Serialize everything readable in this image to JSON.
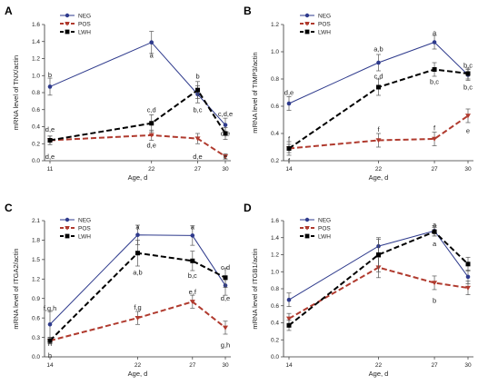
{
  "colors": {
    "NEG": "#2e3a8c",
    "POS": "#b03a2e",
    "LWH": "#000000"
  },
  "chart_data": [
    {
      "type": "line",
      "panel": "A",
      "xlabel": "Age, d",
      "ylabel": "mRNA level of TNX/actin",
      "x": [
        11,
        22,
        27,
        30
      ],
      "x_ticks": [
        "11",
        "22",
        "27",
        "30"
      ],
      "ylim": [
        0,
        1.6
      ],
      "y_ticks": [
        "0.0",
        "0.2",
        "0.4",
        "0.6",
        "0.8",
        "1.0",
        "1.2",
        "1.4",
        "1.6"
      ],
      "legend": "top-left",
      "series": [
        {
          "name": "NEG",
          "values": [
            0.87,
            1.39,
            0.78,
            0.42
          ],
          "errors": [
            0.1,
            0.13,
            0.1,
            0.08
          ]
        },
        {
          "name": "POS",
          "values": [
            0.24,
            0.3,
            0.26,
            0.05
          ],
          "errors": [
            0.05,
            0.06,
            0.06,
            0.03
          ]
        },
        {
          "name": "LWH",
          "values": [
            0.24,
            0.44,
            0.83,
            0.32
          ],
          "errors": [
            0.05,
            0.1,
            0.1,
            0.07
          ]
        }
      ],
      "annotations": [
        {
          "text": "b",
          "x": 11,
          "y": 1.01
        },
        {
          "text": "a",
          "x": 22,
          "y": 1.24
        },
        {
          "text": "b",
          "x": 27,
          "y": 0.99
        },
        {
          "text": "c,d,e",
          "x": 30,
          "y": 0.55
        },
        {
          "text": "c,d",
          "x": 22,
          "y": 0.6
        },
        {
          "text": "b,c",
          "x": 27,
          "y": 0.6
        },
        {
          "text": "d,e",
          "x": 11,
          "y": 0.37
        },
        {
          "text": "d,e",
          "x": 11,
          "y": 0.05
        },
        {
          "text": "d,e",
          "x": 22,
          "y": 0.18
        },
        {
          "text": "d,e",
          "x": 27,
          "y": 0.05
        },
        {
          "text": "d,e",
          "x": 30,
          "y": 0.32
        },
        {
          "text": "e",
          "x": 30,
          "y": 0.05
        }
      ]
    },
    {
      "type": "line",
      "panel": "B",
      "xlabel": "Age, d",
      "ylabel": "mRNA level of TIMP3/actin",
      "x": [
        14,
        22,
        27,
        30
      ],
      "x_ticks": [
        "14",
        "22",
        "27",
        "30"
      ],
      "ylim": [
        0.2,
        1.2
      ],
      "y_ticks": [
        "0.2",
        "0.4",
        "0.6",
        "0.8",
        "1.0",
        "1.2"
      ],
      "legend": "top-left",
      "series": [
        {
          "name": "NEG",
          "values": [
            0.62,
            0.92,
            1.07,
            0.83
          ],
          "errors": [
            0.05,
            0.06,
            0.05,
            0.04
          ]
        },
        {
          "name": "POS",
          "values": [
            0.29,
            0.35,
            0.36,
            0.53
          ],
          "errors": [
            0.03,
            0.05,
            0.05,
            0.05
          ]
        },
        {
          "name": "LWH",
          "values": [
            0.29,
            0.74,
            0.87,
            0.84
          ],
          "errors": [
            0.05,
            0.06,
            0.05,
            0.04
          ]
        }
      ],
      "annotations": [
        {
          "text": "d,e",
          "x": 14,
          "y": 0.7
        },
        {
          "text": "a,b",
          "x": 22,
          "y": 1.02
        },
        {
          "text": "a",
          "x": 27,
          "y": 1.14
        },
        {
          "text": "b,c",
          "x": 30,
          "y": 0.9
        },
        {
          "text": "c,d",
          "x": 22,
          "y": 0.82
        },
        {
          "text": "b,c",
          "x": 27,
          "y": 0.78
        },
        {
          "text": "b,c",
          "x": 30,
          "y": 0.74
        },
        {
          "text": "f",
          "x": 14,
          "y": 0.36
        },
        {
          "text": "f",
          "x": 14,
          "y": 0.2
        },
        {
          "text": "f",
          "x": 22,
          "y": 0.43
        },
        {
          "text": "f",
          "x": 27,
          "y": 0.44
        },
        {
          "text": "e",
          "x": 30,
          "y": 0.42
        }
      ]
    },
    {
      "type": "line",
      "panel": "C",
      "xlabel": "Age, d",
      "ylabel": "mRNA level of ITGA2/actin",
      "x": [
        14,
        22,
        27,
        30
      ],
      "x_ticks": [
        "14",
        "22",
        "27",
        "30"
      ],
      "ylim": [
        0,
        2.1
      ],
      "y_ticks": [
        "0.0",
        "0.3",
        "0.6",
        "0.9",
        "1.2",
        "1.5",
        "1.8",
        "2.1"
      ],
      "legend": "top-left",
      "series": [
        {
          "name": "NEG",
          "values": [
            0.5,
            1.88,
            1.87,
            1.1
          ],
          "errors": [
            0.2,
            0.15,
            0.15,
            0.15
          ]
        },
        {
          "name": "POS",
          "values": [
            0.25,
            0.6,
            0.85,
            0.45
          ],
          "errors": [
            0.05,
            0.1,
            0.1,
            0.1
          ]
        },
        {
          "name": "LWH",
          "values": [
            0.25,
            1.6,
            1.48,
            1.22
          ],
          "errors": [
            0.05,
            0.2,
            0.15,
            0.15
          ]
        }
      ],
      "annotations": [
        {
          "text": "f,g,h",
          "x": 14,
          "y": 0.75
        },
        {
          "text": "a",
          "x": 22,
          "y": 2.0
        },
        {
          "text": "a",
          "x": 27,
          "y": 2.0
        },
        {
          "text": "c,d",
          "x": 30,
          "y": 1.38
        },
        {
          "text": "a,b",
          "x": 22,
          "y": 1.3
        },
        {
          "text": "b,c",
          "x": 27,
          "y": 1.25
        },
        {
          "text": "d,e",
          "x": 30,
          "y": 0.9
        },
        {
          "text": "h",
          "x": 14,
          "y": 0.2
        },
        {
          "text": "h",
          "x": 14,
          "y": 0.02
        },
        {
          "text": "f,g",
          "x": 22,
          "y": 0.76
        },
        {
          "text": "e,f",
          "x": 27,
          "y": 1.0
        },
        {
          "text": "g,h",
          "x": 30,
          "y": 0.18
        }
      ]
    },
    {
      "type": "line",
      "panel": "D",
      "xlabel": "Age, d",
      "ylabel": "mRNA level of ITGB1/actin",
      "x": [
        14,
        22,
        27,
        30
      ],
      "x_ticks": [
        "14",
        "22",
        "27",
        "30"
      ],
      "ylim": [
        0,
        1.6
      ],
      "y_ticks": [
        "0.0",
        "0.2",
        "0.4",
        "0.6",
        "0.8",
        "1.0",
        "1.2",
        "1.4",
        "1.6"
      ],
      "legend": "top-left",
      "series": [
        {
          "name": "NEG",
          "values": [
            0.67,
            1.3,
            1.48,
            0.94
          ],
          "errors": [
            0.08,
            0.08,
            0.06,
            0.08
          ]
        },
        {
          "name": "POS",
          "values": [
            0.45,
            1.05,
            0.87,
            0.81
          ],
          "errors": [
            0.06,
            0.12,
            0.08,
            0.08
          ]
        },
        {
          "name": "LWH",
          "values": [
            0.37,
            1.2,
            1.47,
            1.09
          ],
          "errors": [
            0.06,
            0.2,
            0.05,
            0.08
          ]
        }
      ],
      "annotations": [
        {
          "text": "a",
          "x": 27,
          "y": 1.55
        },
        {
          "text": "a",
          "x": 27,
          "y": 1.33
        },
        {
          "text": "b",
          "x": 27,
          "y": 0.66
        }
      ]
    }
  ]
}
